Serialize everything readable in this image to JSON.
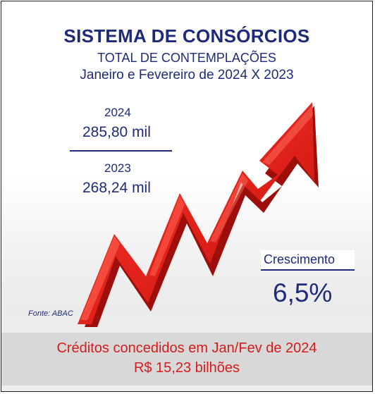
{
  "header": {
    "title": "SISTEMA DE CONSÓRCIOS",
    "subtitle": "TOTAL DE CONTEMPLAÇÕES",
    "period": "Janeiro e Fevereiro de 2024 X 2023"
  },
  "comparison": {
    "current": {
      "year": "2024",
      "value": "285,80 mil"
    },
    "previous": {
      "year": "2023",
      "value": "268,24 mil"
    }
  },
  "growth": {
    "label": "Crescimento",
    "value": "6,5%"
  },
  "source": "Fonte: ABAC",
  "footer": {
    "line1": "Créditos concedidos em Jan/Fev de 2024",
    "line2": "R$ 15,23 bilhões"
  },
  "colors": {
    "text_navy": "#1f2a7a",
    "arrow_red": "#e3231b",
    "footer_red": "#d41c1c",
    "footer_bg": "#d8d8d8"
  },
  "icons": {
    "arrow": "rising-zigzag-arrow-icon"
  }
}
